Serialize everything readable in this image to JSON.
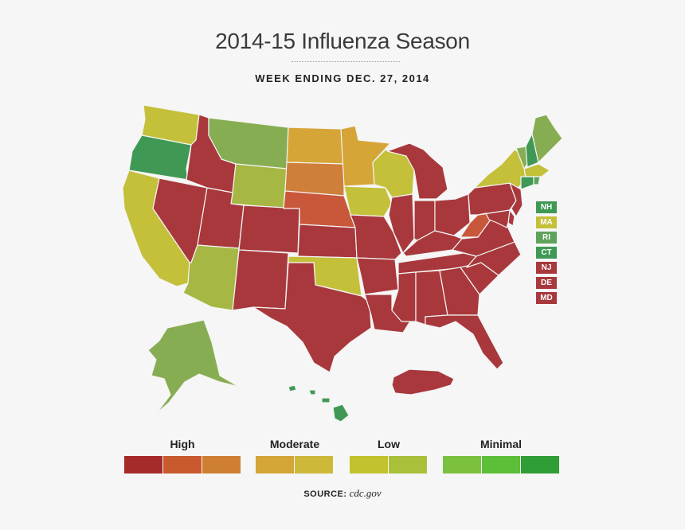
{
  "title": "2014-15 Influenza Season",
  "subtitle": "WEEK ENDING DEC. 27, 2014",
  "colors": {
    "high": "#a8383c",
    "high2": "#c9583b",
    "high3": "#cf7f3a",
    "moderate": "#d6a537",
    "moderate2": "#cdb83a",
    "low": "#c4c03a",
    "low2": "#a6b743",
    "minimal": "#87ad52",
    "minimal2": "#5fa25a",
    "minimal3": "#3f9954"
  },
  "states": {
    "WA": "low",
    "OR": "minimal3",
    "CA": "low",
    "NV": "high",
    "ID": "high",
    "MT": "minimal",
    "WY": "low2",
    "UT": "high",
    "AZ": "low2",
    "CO": "high",
    "NM": "high",
    "ND": "moderate",
    "SD": "high3",
    "NE": "high2",
    "KS": "high",
    "OK": "low",
    "TX": "high",
    "MN": "moderate",
    "IA": "low",
    "MO": "high",
    "AR": "high",
    "LA": "high",
    "WI": "low",
    "IL": "high",
    "MI": "high",
    "IN": "high",
    "OH": "high",
    "KY": "high",
    "TN": "high",
    "MS": "high",
    "AL": "high",
    "GA": "high",
    "FL": "high",
    "SC": "high",
    "NC": "high",
    "VA": "high",
    "WV": "high2",
    "PA": "high",
    "NY": "low",
    "VT": "minimal",
    "NH": "minimal3",
    "ME": "minimal",
    "MA": "low",
    "RI": "minimal2",
    "CT": "minimal3",
    "NJ": "high",
    "DE": "high",
    "MD": "high",
    "AK": "minimal",
    "HI": "minimal3",
    "PR": "high"
  },
  "small_states": [
    {
      "code": "NH",
      "level": "minimal3"
    },
    {
      "code": "MA",
      "level": "low"
    },
    {
      "code": "RI",
      "level": "minimal2"
    },
    {
      "code": "CT",
      "level": "minimal3"
    },
    {
      "code": "NJ",
      "level": "high"
    },
    {
      "code": "DE",
      "level": "high"
    },
    {
      "code": "MD",
      "level": "high"
    }
  ],
  "legend": {
    "high_label": "High",
    "moderate_label": "Moderate",
    "low_label": "Low",
    "minimal_label": "Minimal",
    "swatches": [
      "#a52a2a",
      "#c85a2e",
      "#cf7f32",
      "#d4a537",
      "#cdb83a",
      "#c2c22e",
      "#a9c03a",
      "#7cc040",
      "#5cbf38",
      "#2f9e36"
    ]
  },
  "source": {
    "label": "SOURCE:",
    "value": "cdc.gov"
  }
}
